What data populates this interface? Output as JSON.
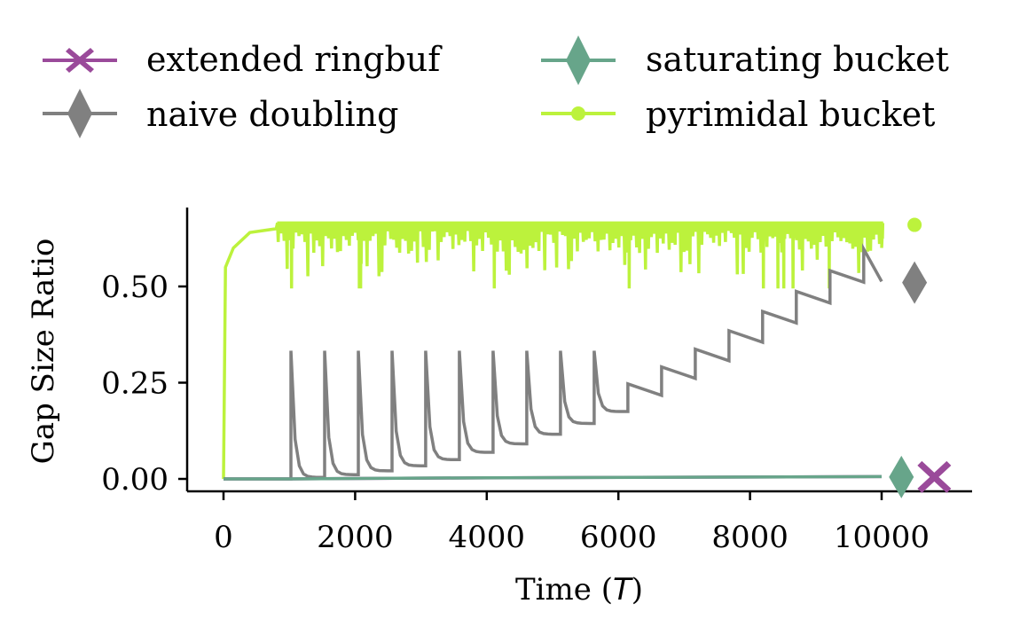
{
  "chart_data": {
    "type": "line",
    "xlabel": "Time",
    "xlabel_var": "T",
    "ylabel": "Gap Size Ratio",
    "xlim": [
      -500,
      11400
    ],
    "ylim": [
      -0.03,
      0.71
    ],
    "xticks": [
      0,
      2000,
      4000,
      6000,
      8000,
      10000
    ],
    "xtick_labels": [
      "0",
      "2000",
      "4000",
      "6000",
      "8000",
      "10000"
    ],
    "yticks": [
      0.0,
      0.25,
      0.5
    ],
    "ytick_labels": [
      "0.00",
      "0.25",
      "0.50"
    ],
    "legend_position": "top",
    "series": [
      {
        "name": "extended ringbuf",
        "color": "#9a4a9a",
        "marker": "X",
        "end_marker": {
          "x": 10800,
          "y": 0.005
        },
        "points": [
          [
            0,
            0.0
          ],
          [
            1000,
            0.0
          ],
          [
            3000,
            0.002
          ],
          [
            6000,
            0.004
          ],
          [
            10000,
            0.006
          ]
        ]
      },
      {
        "name": "naive doubling",
        "color": "#808080",
        "marker": "diamond",
        "end_marker": {
          "x": 10500,
          "y": 0.51
        },
        "pattern": {
          "period": 512,
          "first_spike_x": 1024,
          "spike_peak": 0.333,
          "last_sharp_spike_x": 5632,
          "final_x": 10000,
          "final_y": 0.513
        }
      },
      {
        "name": "saturating bucket",
        "color": "#67a58a",
        "marker": "diamond",
        "end_marker": {
          "x": 10300,
          "y": 0.005
        },
        "points": [
          [
            0,
            0.0
          ],
          [
            1000,
            0.0
          ],
          [
            4000,
            0.003
          ],
          [
            10000,
            0.006
          ]
        ]
      },
      {
        "name": "pyrimidal bucket",
        "color": "#bcf23c",
        "marker": "dot",
        "end_marker": {
          "x": 10500,
          "y": 0.66
        },
        "pattern": {
          "baseline": 0.665,
          "early_ramp": [
            [
              0,
              0.0
            ],
            [
              30,
              0.55
            ],
            [
              150,
              0.6
            ],
            [
              400,
              0.64
            ],
            [
              800,
              0.65
            ]
          ],
          "big_dips_x": [
            1030,
            2060,
            2080,
            4110,
            6160,
            8200,
            8420,
            8510,
            8650,
            9200
          ],
          "big_dip_y": 0.495,
          "final_x": 10000
        }
      }
    ]
  }
}
